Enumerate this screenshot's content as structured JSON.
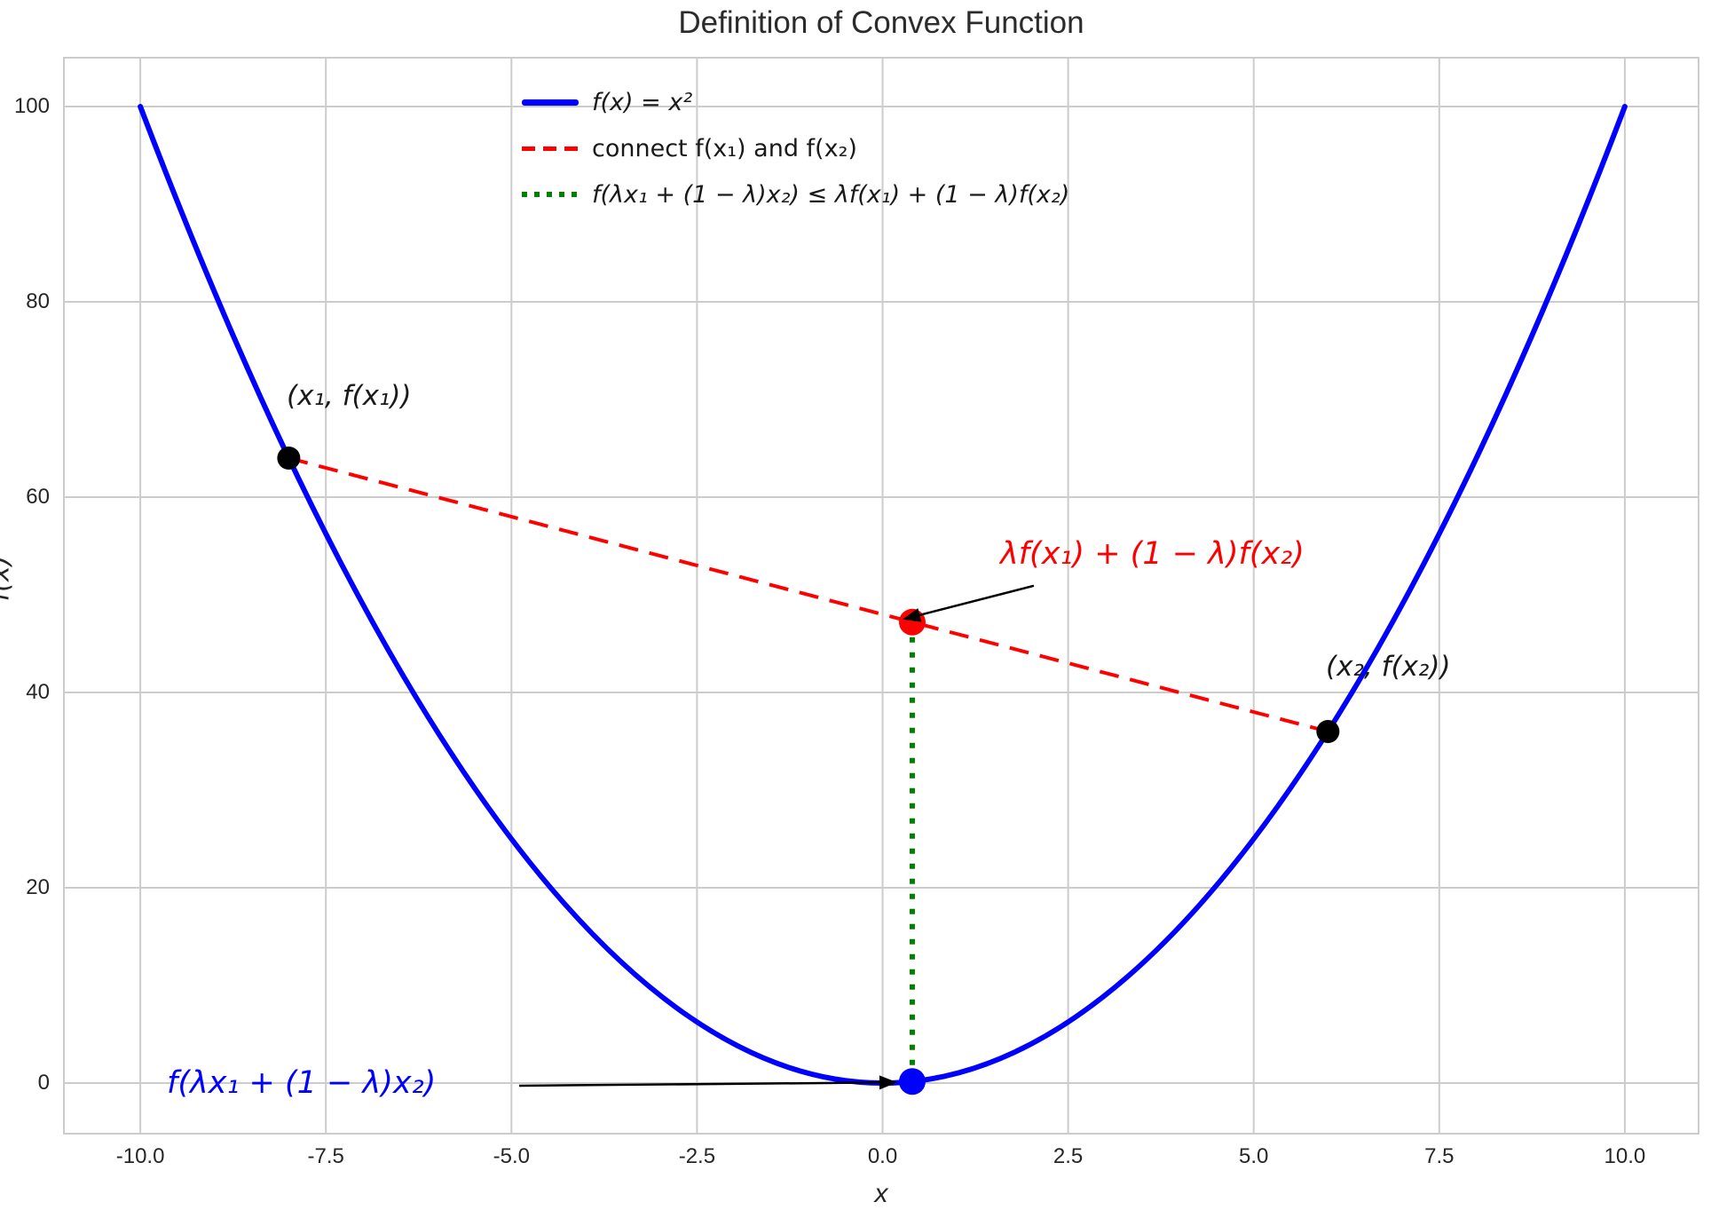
{
  "title": "Definition of Convex Function",
  "axes": {
    "xlabel": "x",
    "ylabel": "f(x)",
    "x_ticks": [
      -10.0,
      -7.5,
      -5.0,
      -2.5,
      0.0,
      2.5,
      5.0,
      7.5,
      10.0
    ],
    "x_tick_labels": [
      "-10.0",
      "-7.5",
      "-5.0",
      "-2.5",
      "0.0",
      "2.5",
      "5.0",
      "7.5",
      "10.0"
    ],
    "y_ticks": [
      0,
      20,
      40,
      60,
      80,
      100
    ],
    "y_tick_labels": [
      "0",
      "20",
      "40",
      "60",
      "80",
      "100"
    ]
  },
  "legend": {
    "items": [
      {
        "label": "f(x) = x²",
        "color": "#0000ff",
        "style": "solid"
      },
      {
        "label": "connect f(x₁) and f(x₂)",
        "color": "#ff0000",
        "style": "dashed"
      },
      {
        "label": "f(λx₁ + (1 − λ)x₂) ≤ λf(x₁) + (1 − λ)f(x₂)",
        "color": "#008000",
        "style": "dotted"
      }
    ]
  },
  "annotations": {
    "p1_label": "(x₁, f(x₁))",
    "p2_label": "(x₂, f(x₂))",
    "chord_value_label": "λf(x₁) + (1 − λ)f(x₂)",
    "function_value_label": "f(λx₁ + (1 − λ)x₂)"
  },
  "chart_data": {
    "type": "line",
    "title": "Definition of Convex Function",
    "xlabel": "x",
    "ylabel": "f(x)",
    "xlim": [
      -11,
      11
    ],
    "ylim": [
      -5,
      105
    ],
    "grid": true,
    "legend_position": "upper center",
    "curve": {
      "name": "f(x) = x²",
      "expression": "x^2",
      "x_min": -10,
      "x_max": 10,
      "color": "#0000ff"
    },
    "points": {
      "p1": {
        "x": -8,
        "y": 64,
        "color": "#000000"
      },
      "p2": {
        "x": 6,
        "y": 36,
        "color": "#000000"
      },
      "chord_point": {
        "x": 0.4,
        "y": 47.2,
        "color": "#ff0000"
      },
      "curve_point": {
        "x": 0.4,
        "y": 0.16,
        "color": "#0000ff"
      }
    },
    "chord": {
      "from": "p1",
      "to": "p2",
      "color": "#ff0000",
      "style": "dashed"
    },
    "vertical_segment": {
      "x": 0.4,
      "y_from": 0.16,
      "y_to": 47.2,
      "color": "#008000",
      "style": "dotted"
    }
  },
  "colors": {
    "grid": "#cccccc",
    "text": "#262626",
    "annotation_black": "#1a1a1a",
    "annotation_red": "#ff0000",
    "annotation_blue": "#0000ff",
    "arrow": "#000000"
  }
}
